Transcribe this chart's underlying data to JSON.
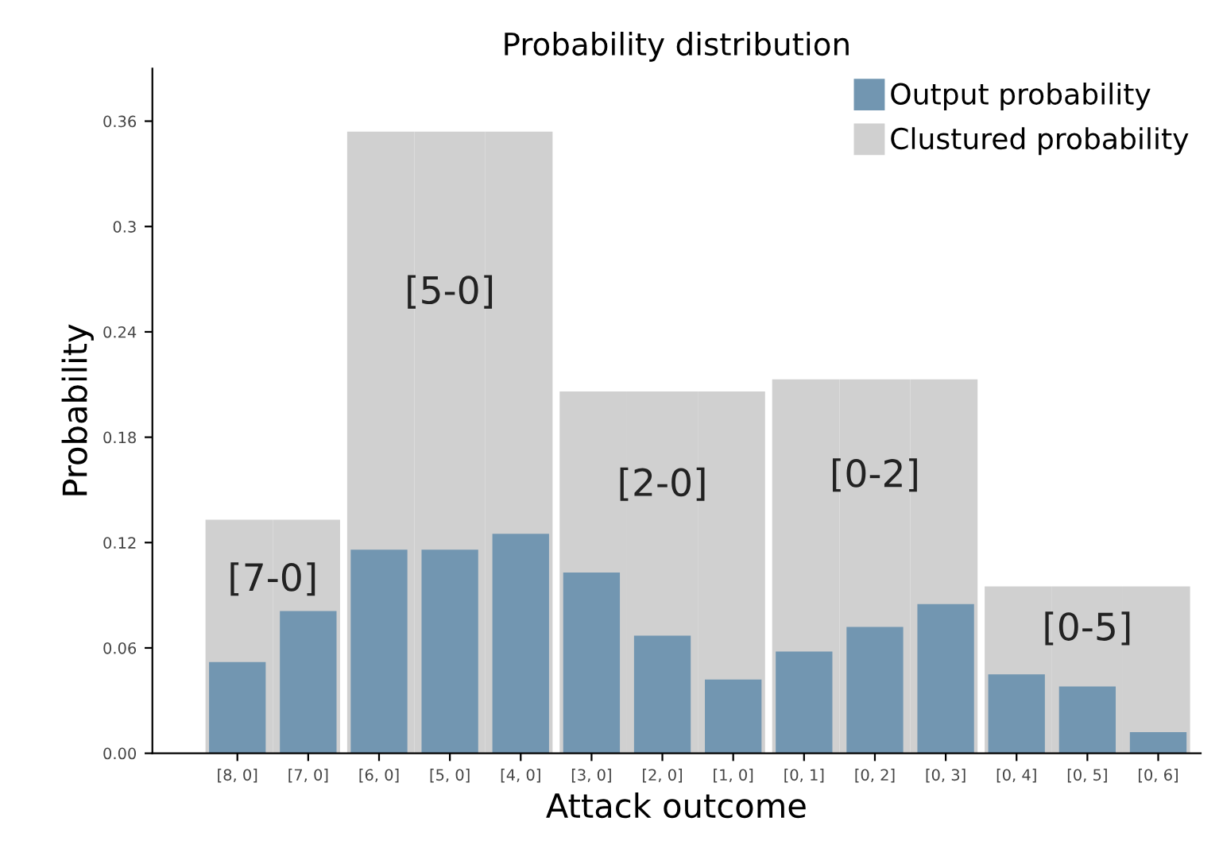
{
  "chart_data": {
    "type": "bar",
    "title": "Probability distribution",
    "xlabel": "Attack outcome",
    "ylabel": "Probability",
    "categories": [
      "[8, 0]",
      "[7, 0]",
      "[6, 0]",
      "[5, 0]",
      "[4, 0]",
      "[3, 0]",
      "[2, 0]",
      "[1, 0]",
      "[0, 1]",
      "[0, 2]",
      "[0, 3]",
      "[0, 4]",
      "[0, 5]",
      "[0, 6]"
    ],
    "series": [
      {
        "name": "Clustured probability",
        "color": "#d0d0d0",
        "values": [
          0.133,
          0.133,
          0.354,
          0.354,
          0.354,
          0.206,
          0.206,
          0.206,
          0.213,
          0.213,
          0.213,
          0.095,
          0.095,
          0.095
        ]
      },
      {
        "name": "Output probability",
        "color": "#7296b1",
        "values": [
          0.052,
          0.081,
          0.116,
          0.116,
          0.125,
          0.103,
          0.067,
          0.042,
          0.058,
          0.072,
          0.085,
          0.045,
          0.038,
          0.012
        ]
      }
    ],
    "annotations": [
      "[7-0]",
      "[5-0]",
      "[2-0]",
      "[0-2]",
      "[0-5]"
    ],
    "ylim": [
      0,
      0.39
    ],
    "yticks": [
      {
        "value": 0,
        "label": "0.00"
      },
      0.06,
      0.12,
      0.18,
      0.24,
      0.3,
      0.36
    ],
    "legend": "top right",
    "grid": false
  }
}
